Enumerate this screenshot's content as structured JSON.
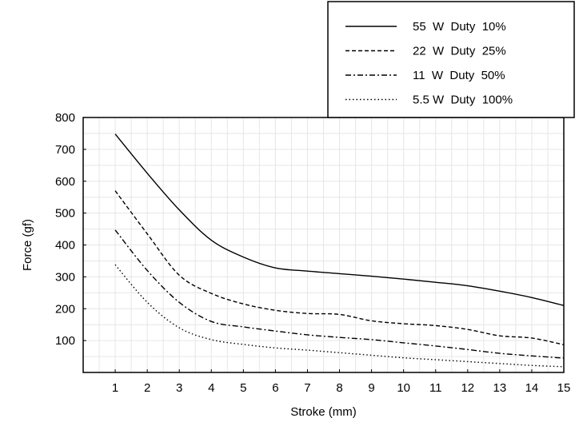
{
  "chart_data": {
    "type": "line",
    "title": "",
    "xlabel": "Stroke (mm)",
    "ylabel": "Force (gf)",
    "xlim": [
      0,
      15
    ],
    "ylim": [
      0,
      800
    ],
    "x_ticks": [
      1,
      2,
      3,
      4,
      5,
      6,
      7,
      8,
      9,
      10,
      11,
      12,
      13,
      14,
      15
    ],
    "y_ticks": [
      100,
      200,
      300,
      400,
      500,
      600,
      700,
      800
    ],
    "grid": true,
    "legend_position": "top-right",
    "x": [
      1,
      2,
      3,
      4,
      5,
      6,
      7,
      8,
      9,
      10,
      11,
      12,
      13,
      14,
      15
    ],
    "series": [
      {
        "name": "55  W  Duty  10%",
        "dash": "solid",
        "values": [
          748,
          625,
          510,
          415,
          362,
          328,
          318,
          310,
          302,
          293,
          283,
          272,
          255,
          235,
          210
        ]
      },
      {
        "name": "22  W  Duty  25%",
        "dash": "dashed",
        "values": [
          570,
          435,
          305,
          248,
          215,
          195,
          185,
          182,
          162,
          153,
          147,
          135,
          115,
          108,
          87
        ]
      },
      {
        "name": "11  W  Duty  50%",
        "dash": "dashdot",
        "values": [
          447,
          320,
          220,
          160,
          143,
          130,
          118,
          110,
          103,
          93,
          83,
          72,
          60,
          52,
          45
        ]
      },
      {
        "name": "5.5 W  Duty  100%",
        "dash": "dotted",
        "values": [
          338,
          220,
          140,
          103,
          88,
          77,
          70,
          62,
          54,
          46,
          40,
          34,
          28,
          22,
          18
        ]
      }
    ]
  }
}
